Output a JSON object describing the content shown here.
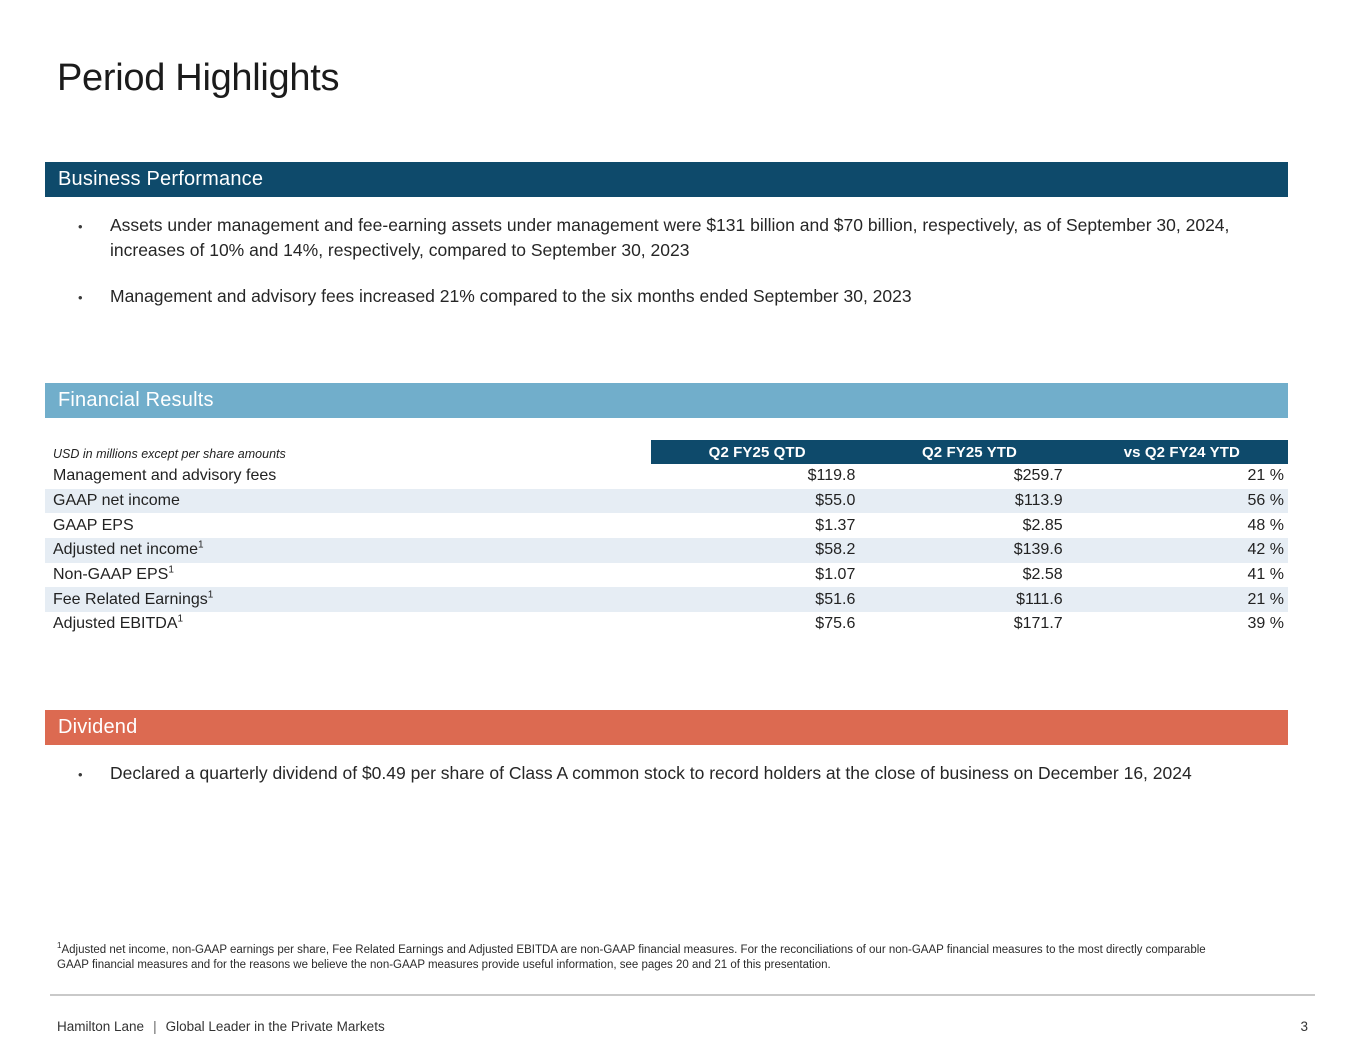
{
  "page": {
    "title": "Period Highlights",
    "page_number": "3"
  },
  "sections": {
    "business_performance": {
      "title": "Business Performance",
      "bullets": [
        "Assets under management and fee-earning assets under management were $131 billion and $70 billion, respectively, as of September 30, 2024, increases of 10% and 14%, respectively, compared to September 30, 2023",
        "Management and advisory fees increased 21% compared to the six months ended September 30, 2023"
      ]
    },
    "financial_results": {
      "title": "Financial Results",
      "note": "USD in millions except per share amounts",
      "table": {
        "columns": [
          "Q2 FY25 QTD",
          "Q2 FY25 YTD",
          "vs Q2 FY24 YTD"
        ],
        "rows": [
          {
            "label": "Management and advisory fees",
            "sup": "",
            "q2_fy25_qtd": "$119.8",
            "q2_fy25_ytd": "$259.7",
            "vs_q2_fy24_ytd": "21 %"
          },
          {
            "label": "GAAP net income",
            "sup": "",
            "q2_fy25_qtd": "$55.0",
            "q2_fy25_ytd": "$113.9",
            "vs_q2_fy24_ytd": "56 %"
          },
          {
            "label": "GAAP EPS",
            "sup": "",
            "q2_fy25_qtd": "$1.37",
            "q2_fy25_ytd": "$2.85",
            "vs_q2_fy24_ytd": "48 %"
          },
          {
            "label": "Adjusted net income",
            "sup": "1",
            "q2_fy25_qtd": "$58.2",
            "q2_fy25_ytd": "$139.6",
            "vs_q2_fy24_ytd": "42 %"
          },
          {
            "label": "Non-GAAP EPS",
            "sup": "1",
            "q2_fy25_qtd": "$1.07",
            "q2_fy25_ytd": "$2.58",
            "vs_q2_fy24_ytd": "41 %"
          },
          {
            "label": "Fee Related Earnings",
            "sup": "1",
            "q2_fy25_qtd": "$51.6",
            "q2_fy25_ytd": "$111.6",
            "vs_q2_fy24_ytd": "21 %"
          },
          {
            "label": "Adjusted EBITDA",
            "sup": "1",
            "q2_fy25_qtd": "$75.6",
            "q2_fy25_ytd": "$171.7",
            "vs_q2_fy24_ytd": "39 %"
          }
        ]
      }
    },
    "dividend": {
      "title": "Dividend",
      "bullets": [
        "Declared a quarterly dividend of $0.49 per share of Class A common stock to record holders at the close of business on December 16, 2024"
      ]
    }
  },
  "footnote": {
    "sup": "1",
    "text": "Adjusted net income, non-GAAP earnings per share, Fee Related Earnings and Adjusted EBITDA are non-GAAP financial measures. For the reconciliations of our non-GAAP financial measures to the most directly comparable GAAP financial measures and for the reasons we believe the non-GAAP measures provide useful information, see pages 20 and 21 of this presentation."
  },
  "footer": {
    "brand": "Hamilton Lane",
    "separator": "|",
    "tagline": "Global Leader in the Private Markets"
  },
  "colors": {
    "navy": "#0E4A6B",
    "light_blue": "#71AECB",
    "coral": "#DC6A51",
    "row_stripe": "#E6EDF4",
    "divider": "#C9C9C9"
  }
}
